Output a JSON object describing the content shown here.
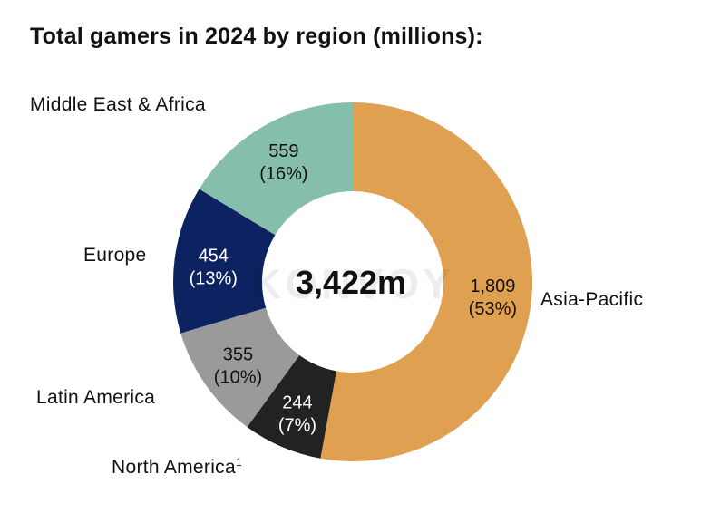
{
  "title": "Total gamers in 2024 by region (millions):",
  "watermark": "KONVOY",
  "chart_data": {
    "type": "pie",
    "donut": true,
    "center_label": "3,422m",
    "slices": [
      {
        "name": "Asia-Pacific",
        "value": 1809,
        "value_label": "1,809",
        "percent_label": "(53%)",
        "color": "#E0A052"
      },
      {
        "name": "North America",
        "name_sup": "1",
        "value": 244,
        "value_label": "244",
        "percent_label": "(7%)",
        "color": "#222222"
      },
      {
        "name": "Latin America",
        "value": 355,
        "value_label": "355",
        "percent_label": "(10%)",
        "color": "#9A9A9A"
      },
      {
        "name": "Europe",
        "value": 454,
        "value_label": "454",
        "percent_label": "(13%)",
        "color": "#0D2260"
      },
      {
        "name": "Middle East & Africa",
        "value": 559,
        "value_label": "559",
        "percent_label": "(16%)",
        "color": "#85BFAC"
      }
    ]
  }
}
